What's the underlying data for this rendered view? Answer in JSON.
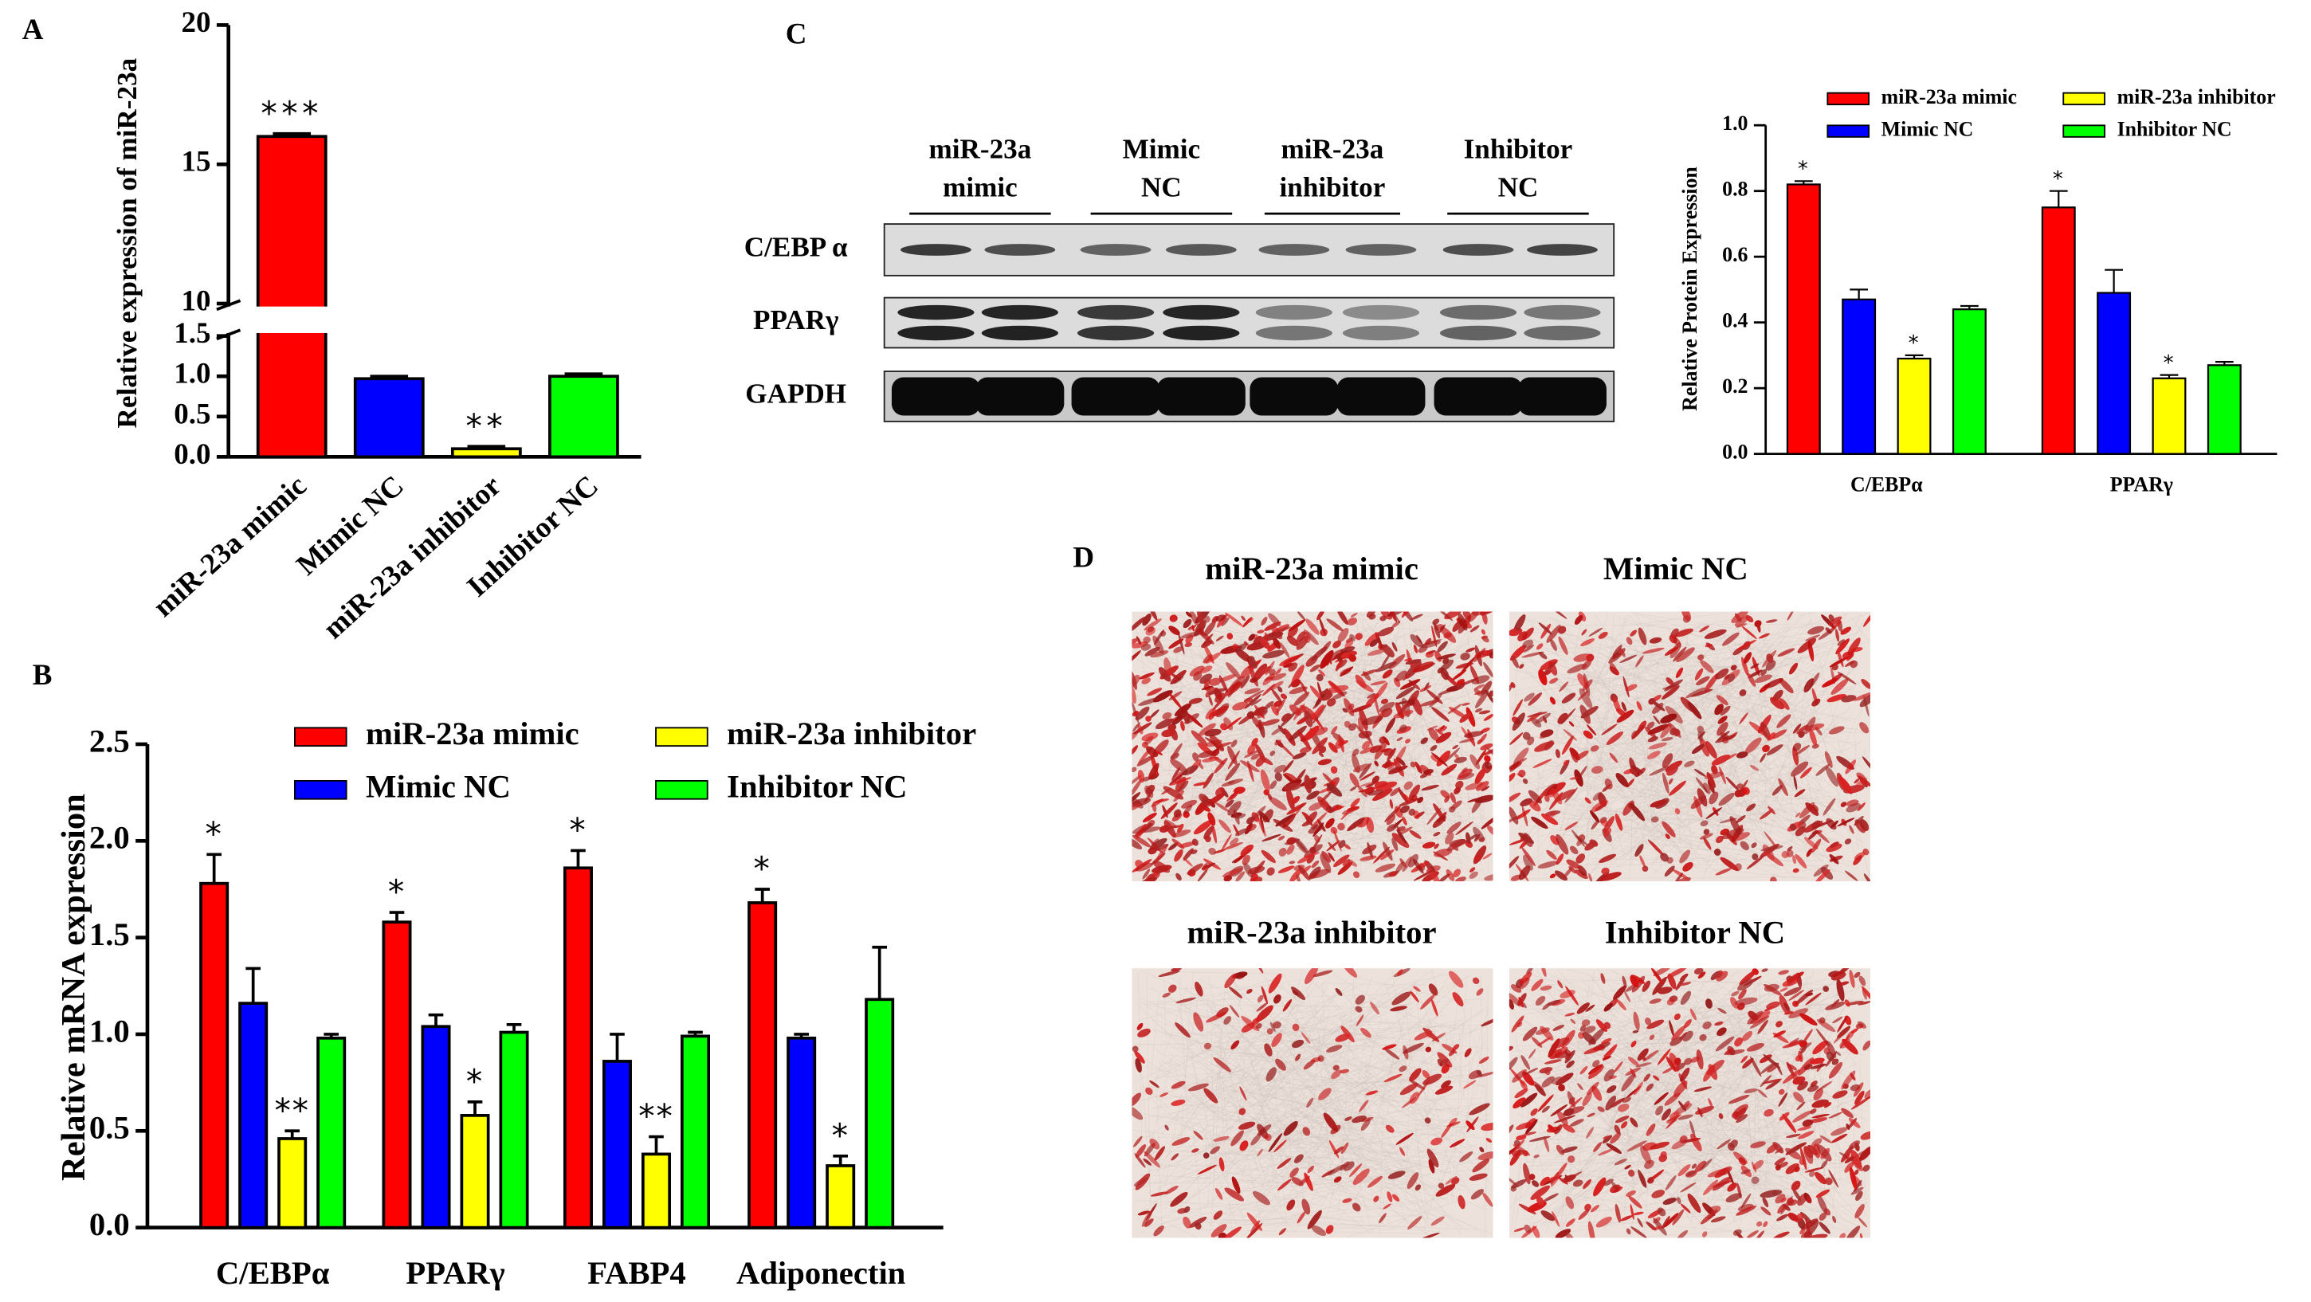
{
  "panel_labels": [
    "A",
    "B",
    "C",
    "D"
  ],
  "chart_data": [
    {
      "type": "bar",
      "y_label": "Relative expression of miR-23a",
      "categories": [
        "miR-23a mimic",
        "Mimic NC",
        "miR-23a inhibitor",
        "Inhibitor NC"
      ],
      "values": [
        16,
        0.97,
        0.1,
        1.0
      ],
      "errors": [
        0.1,
        0.03,
        0.03,
        0.03
      ],
      "significance": [
        "***",
        null,
        "**",
        null
      ],
      "colors": [
        "#ff0000",
        "#0000ff",
        "#ffff00",
        "#00ff00"
      ],
      "ylim": [
        0,
        20
      ],
      "ybreak": [
        1.5,
        10
      ],
      "yticks": [
        {
          "value": 0,
          "label": "0.0"
        },
        0.5,
        {
          "value": 1,
          "label": "1.0"
        },
        1.5,
        10,
        15,
        20
      ]
    },
    {
      "type": "bar",
      "y_label": "Relative mRNA expression",
      "categories": [
        "C/EBPα",
        "PPARγ",
        "FABP4",
        "Adiponectin"
      ],
      "series": [
        {
          "name": "miR-23a mimic",
          "color": "#ff0000",
          "values": [
            1.78,
            1.58,
            1.86,
            1.68
          ],
          "errors": [
            0.15,
            0.05,
            0.09,
            0.07
          ],
          "significance": [
            "*",
            "*",
            "*",
            "*"
          ]
        },
        {
          "name": "Mimic NC",
          "color": "#0000ff",
          "values": [
            1.16,
            1.04,
            0.86,
            0.98
          ],
          "errors": [
            0.18,
            0.06,
            0.14,
            0.02
          ]
        },
        {
          "name": "miR-23a inhibitor",
          "color": "#ffff00",
          "values": [
            0.46,
            0.58,
            0.38,
            0.32
          ],
          "errors": [
            0.04,
            0.07,
            0.09,
            0.05
          ],
          "significance": [
            "**",
            "*",
            "**",
            "*"
          ]
        },
        {
          "name": "Inhibitor NC",
          "color": "#00ff00",
          "values": [
            0.98,
            1.01,
            0.99,
            1.18
          ],
          "errors": [
            0.02,
            0.04,
            0.02,
            0.27
          ]
        }
      ],
      "ylim": [
        0,
        2.5
      ],
      "yticks": [
        {
          "value": 0,
          "label": "0.0"
        },
        0.5,
        {
          "value": 1,
          "label": "1.0"
        },
        1.5,
        {
          "value": 2,
          "label": "2.0"
        },
        2.5
      ]
    },
    {
      "type": "bar",
      "y_label": "Relative Protein Expression",
      "categories": [
        "C/EBPα",
        "PPARγ"
      ],
      "series": [
        {
          "name": "miR-23a mimic",
          "color": "#ff0000",
          "values": [
            0.82,
            0.75
          ],
          "errors": [
            0.01,
            0.05
          ],
          "significance": [
            "*",
            "*"
          ]
        },
        {
          "name": "Mimic NC",
          "color": "#0000ff",
          "values": [
            0.47,
            0.49
          ],
          "errors": [
            0.03,
            0.07
          ]
        },
        {
          "name": "miR-23a inhibitor",
          "color": "#ffff00",
          "values": [
            0.29,
            0.23
          ],
          "errors": [
            0.01,
            0.01
          ],
          "significance": [
            "*",
            "*"
          ]
        },
        {
          "name": "Inhibitor NC",
          "color": "#00ff00",
          "values": [
            0.44,
            0.27
          ],
          "errors": [
            0.01,
            0.01
          ]
        }
      ],
      "ylim": [
        0,
        1.0
      ],
      "yticks": [
        {
          "value": 0,
          "label": "0.0"
        },
        0.2,
        0.4,
        0.6,
        0.8,
        {
          "value": 1,
          "label": "1.0"
        }
      ]
    }
  ],
  "blot": {
    "groups": [
      [
        "miR-23a",
        "mimic"
      ],
      [
        "Mimic",
        "NC"
      ],
      [
        "miR-23a",
        "inhibitor"
      ],
      [
        "Inhibitor",
        "NC"
      ]
    ],
    "rows": [
      "C/EBP α",
      "PPARγ",
      "GAPDH"
    ]
  },
  "micrographs": [
    "miR-23a mimic",
    "Mimic NC",
    "miR-23a inhibitor",
    "Inhibitor NC"
  ]
}
